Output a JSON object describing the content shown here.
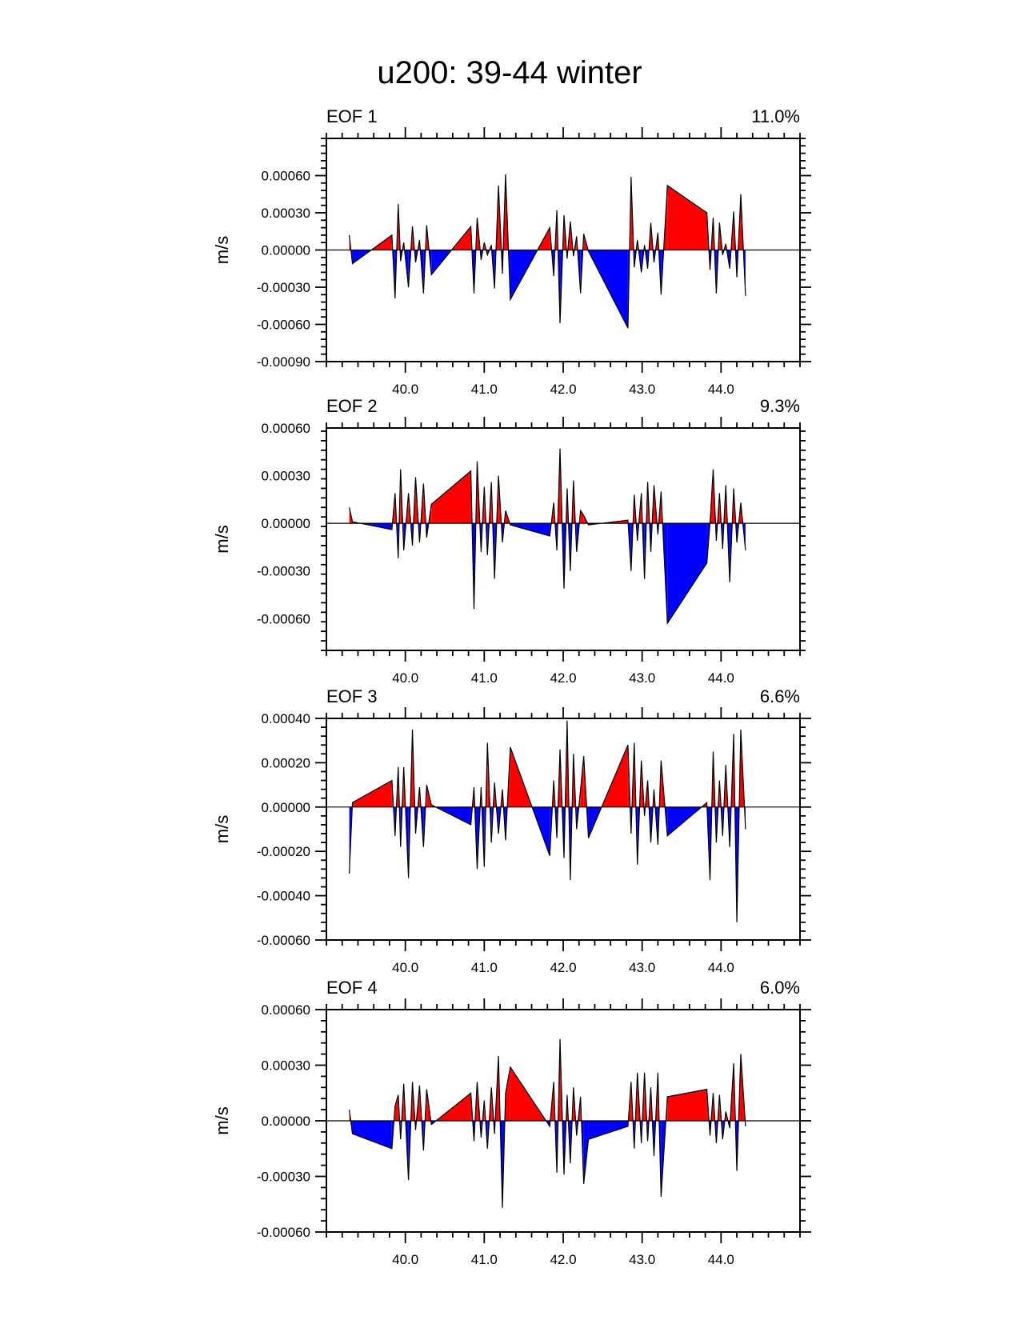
{
  "figure_title": "u200: 39-44 winter",
  "colors": {
    "positive": "#ff0000",
    "negative": "#0000ff",
    "line": "#000000"
  },
  "chart_data": [
    {
      "type": "area",
      "title": "EOF 1",
      "right_label": "11.0%",
      "ylabel": "m/s",
      "xlim": [
        39.0,
        45.0
      ],
      "ylim": [
        -0.0009,
        0.0009
      ],
      "yticks": [
        -0.0009,
        -0.0006,
        -0.0003,
        0.0,
        0.0003,
        0.0006
      ],
      "ytick_labels": [
        "-0.00090",
        "-0.00060",
        "-0.00030",
        "0.00000",
        "0.00030",
        "0.00060"
      ],
      "xticks": [
        40.0,
        41.0,
        42.0,
        43.0,
        44.0
      ],
      "xtick_labels": [
        "40.0",
        "41.0",
        "42.0",
        "43.0",
        "44.0"
      ],
      "x": [
        39.29,
        39.33,
        39.83,
        39.87,
        39.91,
        39.94,
        39.98,
        40.04,
        40.09,
        40.13,
        40.18,
        40.23,
        40.27,
        40.33,
        40.83,
        40.87,
        40.91,
        40.96,
        41.0,
        41.04,
        41.09,
        41.13,
        41.18,
        41.23,
        41.27,
        41.33,
        41.83,
        41.88,
        41.92,
        41.96,
        42.01,
        42.05,
        42.09,
        42.13,
        42.17,
        42.22,
        42.26,
        42.32,
        42.82,
        42.86,
        42.9,
        42.94,
        42.99,
        43.03,
        43.07,
        43.11,
        43.15,
        43.2,
        43.24,
        43.32,
        43.82,
        43.86,
        43.9,
        43.94,
        43.98,
        44.02,
        44.06,
        44.11,
        44.16,
        44.2,
        44.25,
        44.31
      ],
      "values": [
        0.00012,
        -0.00011,
        0.00012,
        -0.00039,
        0.00037,
        -9e-05,
        6e-05,
        -0.0003,
        0.00019,
        -0.0001,
        8e-05,
        -0.00035,
        0.0002,
        -0.0002,
        0.00019,
        -0.00035,
        0.00026,
        -8e-05,
        6e-05,
        -4e-05,
        4e-05,
        -0.00031,
        0.00052,
        -0.00019,
        0.00061,
        -0.0004,
        0.00018,
        -0.00021,
        0.00032,
        -0.00059,
        0.00028,
        -7e-05,
        0.00023,
        -5e-05,
        0.00011,
        -0.00035,
        0.00013,
        -1e-05,
        -0.00063,
        0.00059,
        -0.00014,
        8e-05,
        -0.00018,
        4e-05,
        -0.00015,
        0.00022,
        -0.0001,
        0.00014,
        -0.00036,
        0.00052,
        0.0003,
        -0.00016,
        0.00026,
        -0.00035,
        0.00022,
        -4e-05,
        5e-05,
        -0.00015,
        0.00031,
        -0.00022,
        0.00045,
        -0.00037
      ]
    },
    {
      "type": "area",
      "title": "EOF 2",
      "right_label": "9.3%",
      "ylabel": "m/s",
      "xlim": [
        39.0,
        45.0
      ],
      "ylim": [
        -0.0008,
        0.0006
      ],
      "yticks": [
        -0.0006,
        -0.0003,
        0.0,
        0.0003,
        0.0006
      ],
      "ytick_labels": [
        "-0.00060",
        "-0.00030",
        "0.00000",
        "0.00030",
        "0.00060"
      ],
      "xticks": [
        40.0,
        41.0,
        42.0,
        43.0,
        44.0
      ],
      "xtick_labels": [
        "40.0",
        "41.0",
        "42.0",
        "43.0",
        "44.0"
      ],
      "x": [
        39.29,
        39.33,
        39.83,
        39.87,
        39.91,
        39.94,
        39.98,
        40.04,
        40.09,
        40.13,
        40.18,
        40.23,
        40.27,
        40.33,
        40.83,
        40.87,
        40.91,
        40.96,
        41.0,
        41.04,
        41.09,
        41.13,
        41.18,
        41.23,
        41.27,
        41.33,
        41.83,
        41.88,
        41.92,
        41.96,
        42.01,
        42.05,
        42.09,
        42.13,
        42.17,
        42.22,
        42.26,
        42.32,
        42.82,
        42.86,
        42.9,
        42.94,
        42.99,
        43.03,
        43.07,
        43.11,
        43.15,
        43.2,
        43.24,
        43.32,
        43.82,
        43.86,
        43.9,
        43.94,
        43.98,
        44.02,
        44.06,
        44.11,
        44.16,
        44.2,
        44.25,
        44.31
      ],
      "values": [
        0.0001,
        1e-05,
        -4e-05,
        0.00019,
        -0.00022,
        0.00034,
        -0.00017,
        0.00019,
        -0.00014,
        0.00029,
        -0.00012,
        0.00025,
        -9e-05,
        0.00012,
        0.00033,
        -0.00054,
        0.00039,
        -0.00018,
        0.00023,
        -0.0002,
        0.00026,
        -0.00035,
        0.0003,
        -0.00012,
        8e-05,
        -1e-05,
        -8e-05,
        0.00013,
        -0.00017,
        0.00047,
        -0.00041,
        0.00022,
        -0.0003,
        0.00027,
        -0.00018,
        8e-05,
        5e-05,
        -1e-05,
        2e-05,
        -0.0003,
        0.00018,
        -0.00011,
        0.00019,
        -0.00035,
        0.00026,
        -0.00018,
        0.00024,
        -7e-05,
        0.0002,
        -0.00063,
        -0.00025,
        0.0,
        0.00034,
        -0.00011,
        0.00019,
        -0.00016,
        0.00024,
        -0.00037,
        0.00022,
        -0.00012,
        0.00013,
        -0.00017
      ]
    },
    {
      "type": "area",
      "title": "EOF 3",
      "right_label": "6.6%",
      "ylabel": "m/s",
      "xlim": [
        39.0,
        45.0
      ],
      "ylim": [
        -0.0006,
        0.0004
      ],
      "yticks": [
        -0.0006,
        -0.0004,
        -0.0002,
        0.0,
        0.0002,
        0.0004
      ],
      "ytick_labels": [
        "-0.00060",
        "-0.00040",
        "-0.00020",
        "0.00000",
        "0.00020",
        "0.00040"
      ],
      "xticks": [
        40.0,
        41.0,
        42.0,
        43.0,
        44.0
      ],
      "xtick_labels": [
        "40.0",
        "41.0",
        "42.0",
        "43.0",
        "44.0"
      ],
      "x": [
        39.29,
        39.33,
        39.83,
        39.87,
        39.91,
        39.94,
        39.98,
        40.04,
        40.09,
        40.13,
        40.18,
        40.23,
        40.27,
        40.33,
        40.83,
        40.87,
        40.91,
        40.96,
        41.0,
        41.04,
        41.09,
        41.13,
        41.18,
        41.23,
        41.27,
        41.33,
        41.83,
        41.88,
        41.92,
        41.96,
        42.01,
        42.05,
        42.09,
        42.13,
        42.17,
        42.22,
        42.26,
        42.32,
        42.82,
        42.86,
        42.9,
        42.94,
        42.99,
        43.03,
        43.07,
        43.11,
        43.15,
        43.2,
        43.24,
        43.32,
        43.82,
        43.86,
        43.9,
        43.94,
        43.98,
        44.02,
        44.06,
        44.11,
        44.16,
        44.2,
        44.25,
        44.31
      ],
      "values": [
        -0.0003,
        2e-05,
        0.00012,
        -0.00013,
        0.00018,
        -0.00018,
        0.00018,
        -0.00032,
        0.00035,
        -0.00012,
        9e-05,
        -0.00018,
        0.0001,
        1e-05,
        -8e-05,
        9e-05,
        -0.00028,
        9e-05,
        -0.00027,
        0.00029,
        -0.00016,
        0.00011,
        -0.00012,
        8e-05,
        -0.00015,
        0.00027,
        -0.00022,
        0.00012,
        -0.00014,
        0.00026,
        -0.00023,
        0.00039,
        -0.00033,
        0.00024,
        -0.0001,
        8e-05,
        0.00023,
        -0.00014,
        0.00028,
        -0.00012,
        0.00029,
        -0.00026,
        0.00021,
        -4e-05,
        0.00012,
        -0.00016,
        8e-05,
        -0.00017,
        0.00021,
        -0.00013,
        2e-05,
        -0.00033,
        0.00025,
        -0.00016,
        0.00012,
        -0.00013,
        0.00019,
        -0.00018,
        0.00033,
        -0.00052,
        0.00035,
        -0.0001
      ]
    },
    {
      "type": "area",
      "title": "EOF 4",
      "right_label": "6.0%",
      "ylabel": "m/s",
      "xlim": [
        39.0,
        45.0
      ],
      "ylim": [
        -0.0006,
        0.0006
      ],
      "yticks": [
        -0.0006,
        -0.0003,
        0.0,
        0.0003,
        0.0006
      ],
      "ytick_labels": [
        "-0.00060",
        "-0.00030",
        "0.00000",
        "0.00030",
        "0.00060"
      ],
      "xticks": [
        40.0,
        41.0,
        42.0,
        43.0,
        44.0
      ],
      "xtick_labels": [
        "40.0",
        "41.0",
        "42.0",
        "43.0",
        "44.0"
      ],
      "x": [
        39.29,
        39.33,
        39.83,
        39.87,
        39.91,
        39.94,
        39.98,
        40.04,
        40.09,
        40.13,
        40.18,
        40.23,
        40.27,
        40.33,
        40.83,
        40.87,
        40.91,
        40.96,
        41.0,
        41.04,
        41.09,
        41.13,
        41.18,
        41.23,
        41.27,
        41.33,
        41.83,
        41.88,
        41.92,
        41.96,
        42.01,
        42.05,
        42.09,
        42.13,
        42.17,
        42.22,
        42.26,
        42.32,
        42.82,
        42.86,
        42.9,
        42.94,
        42.99,
        43.03,
        43.07,
        43.11,
        43.15,
        43.2,
        43.24,
        43.32,
        43.82,
        43.86,
        43.9,
        43.94,
        43.98,
        44.02,
        44.06,
        44.11,
        44.16,
        44.2,
        44.25,
        44.31
      ],
      "values": [
        6e-05,
        -7e-05,
        -0.00015,
        8e-05,
        0.00014,
        -0.0001,
        0.0002,
        -0.00032,
        0.00021,
        -5e-05,
        0.00019,
        -0.00016,
        0.00017,
        -2e-05,
        0.00015,
        -0.00011,
        0.00021,
        -9e-05,
        0.00011,
        -0.00015,
        0.00018,
        -7e-05,
        0.00035,
        -0.00047,
        0.00015,
        0.00029,
        -3e-05,
        0.00021,
        -0.00028,
        0.00044,
        -0.00029,
        0.00014,
        -0.00023,
        0.00018,
        -8e-05,
        0.00013,
        -0.00034,
        -0.0001,
        -3e-05,
        0.00021,
        -0.00015,
        0.00026,
        -0.00012,
        0.00026,
        -0.00011,
        0.00018,
        -0.00019,
        0.00026,
        -0.00041,
        0.00013,
        0.00017,
        -8e-05,
        0.00015,
        -0.00012,
        0.00014,
        -0.0001,
        5e-05,
        -4e-05,
        0.00031,
        -0.00027,
        0.00036,
        -3e-05
      ]
    }
  ]
}
